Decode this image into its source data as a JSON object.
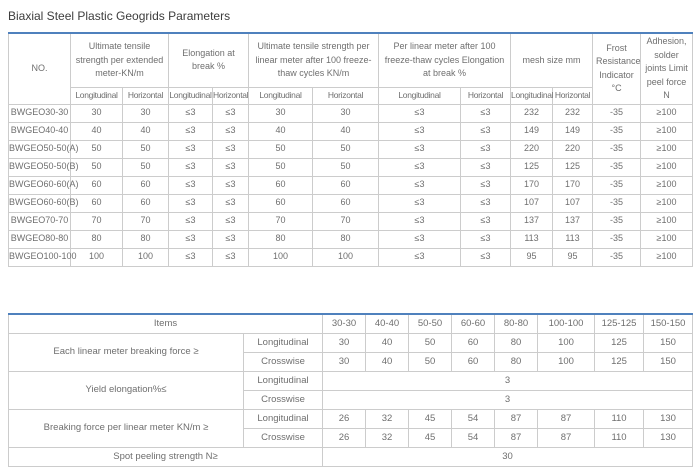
{
  "page_title": "Biaxial Steel Plastic Geogrids Parameters",
  "colors": {
    "accent_top_border": "#4f81bd",
    "table_border": "#cccccc",
    "table_text": "#6f6f6f",
    "title_text": "#3d3d3d"
  },
  "table1": {
    "header_groups": [
      {
        "name": "no-header",
        "label": "NO.",
        "rowspan": 2
      },
      {
        "name": "ultimate-tensile-strength-header",
        "label": "Ultimate tensile strength per extended meter-KN/m",
        "colspan": 2
      },
      {
        "name": "elongation-at-break-header",
        "label": "Elongation at break %",
        "colspan": 2
      },
      {
        "name": "freeze-thaw-tensile-header",
        "label": "Ultimate tensile strength per linear meter after 100 freeze-thaw cycles KN/m",
        "colspan": 2
      },
      {
        "name": "freeze-thaw-elongation-header",
        "label": "Per linear meter after 100 freeze-thaw cycles Elongation at break %",
        "colspan": 2
      },
      {
        "name": "mesh-size-header",
        "label": "mesh size mm",
        "colspan": 2
      },
      {
        "name": "frost-resistance-header",
        "label": "Frost Resistance Indicator °C",
        "rowspan": 2
      },
      {
        "name": "adhesion-header",
        "label": "Adhesion, solder joints Limit peel force N",
        "rowspan": 2
      }
    ],
    "subheaders": [
      "Longitudinal",
      "Horizontal",
      "Longitudinal",
      "Horizontal",
      "Longitudinal",
      "Horizontal",
      "Longitudinal",
      "Horizontal",
      "Longitudinal",
      "Horizontal"
    ],
    "rows": [
      [
        "BWGEO30-30",
        "30",
        "30",
        "≤3",
        "≤3",
        "30",
        "30",
        "≤3",
        "≤3",
        "232",
        "232",
        "-35",
        "≥100"
      ],
      [
        "BWGEO40-40",
        "40",
        "40",
        "≤3",
        "≤3",
        "40",
        "40",
        "≤3",
        "≤3",
        "149",
        "149",
        "-35",
        "≥100"
      ],
      [
        "BWGEO50-50(A)",
        "50",
        "50",
        "≤3",
        "≤3",
        "50",
        "50",
        "≤3",
        "≤3",
        "220",
        "220",
        "-35",
        "≥100"
      ],
      [
        "BWGEO50-50(B)",
        "50",
        "50",
        "≤3",
        "≤3",
        "50",
        "50",
        "≤3",
        "≤3",
        "125",
        "125",
        "-35",
        "≥100"
      ],
      [
        "BWGEO60-60(A)",
        "60",
        "60",
        "≤3",
        "≤3",
        "60",
        "60",
        "≤3",
        "≤3",
        "170",
        "170",
        "-35",
        "≥100"
      ],
      [
        "BWGEO60-60(B)",
        "60",
        "60",
        "≤3",
        "≤3",
        "60",
        "60",
        "≤3",
        "≤3",
        "107",
        "107",
        "-35",
        "≥100"
      ],
      [
        "BWGEO70-70",
        "70",
        "70",
        "≤3",
        "≤3",
        "70",
        "70",
        "≤3",
        "≤3",
        "137",
        "137",
        "-35",
        "≥100"
      ],
      [
        "BWGEO80-80",
        "80",
        "80",
        "≤3",
        "≤3",
        "80",
        "80",
        "≤3",
        "≤3",
        "113",
        "113",
        "-35",
        "≥100"
      ],
      [
        "BWGEO100-100",
        "100",
        "100",
        "≤3",
        "≤3",
        "100",
        "100",
        "≤3",
        "≤3",
        "95",
        "95",
        "-35",
        "≥100"
      ]
    ]
  },
  "table2": {
    "items_header": "Items",
    "columns": [
      "30-30",
      "40-40",
      "50-50",
      "60-60",
      "80-80",
      "100-100",
      "125-125",
      "150-150"
    ],
    "sections": [
      {
        "item": "Each linear meter breaking force ≥",
        "directions": [
          {
            "label": "Longitudinal",
            "values": [
              "30",
              "40",
              "50",
              "60",
              "80",
              "100",
              "125",
              "150"
            ]
          },
          {
            "label": "Crosswise",
            "values": [
              "30",
              "40",
              "50",
              "60",
              "80",
              "100",
              "125",
              "150"
            ]
          }
        ]
      },
      {
        "item": "Yield elongation%≤",
        "directions": [
          {
            "label": "Longitudinal",
            "merged": "3"
          },
          {
            "label": "Crosswise",
            "merged": "3"
          }
        ]
      },
      {
        "item": "Breaking force per linear meter KN/m ≥",
        "directions": [
          {
            "label": "Longitudinal",
            "values": [
              "26",
              "32",
              "45",
              "54",
              "87",
              "87",
              "110",
              "130"
            ]
          },
          {
            "label": "Crosswise",
            "values": [
              "26",
              "32",
              "45",
              "54",
              "87",
              "87",
              "110",
              "130"
            ]
          }
        ]
      },
      {
        "item": "Spot peeling strength N≥",
        "merged": "30"
      }
    ]
  }
}
